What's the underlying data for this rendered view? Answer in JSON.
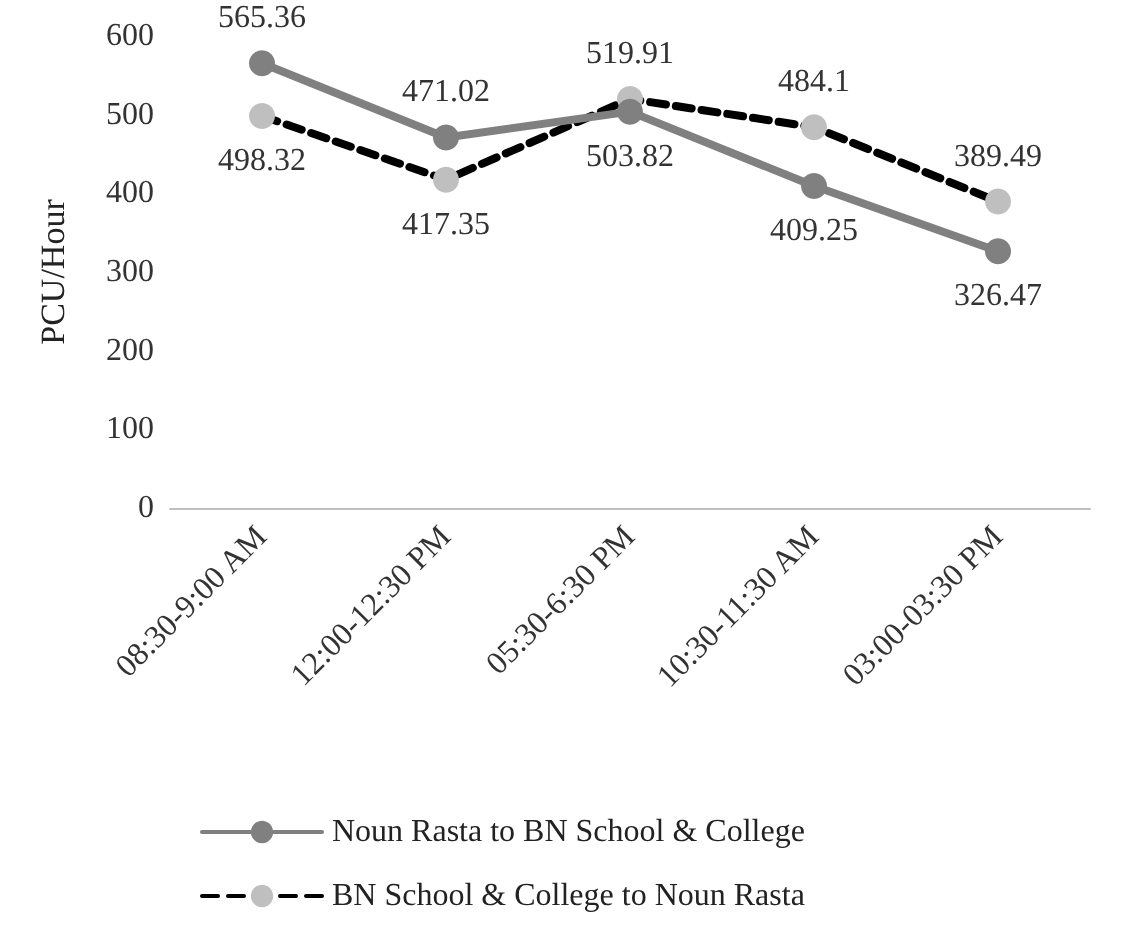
{
  "chart_data": {
    "type": "line",
    "ylabel": "PCU/Hour",
    "categories": [
      "08:30-9:00 AM",
      "12:00-12:30 PM",
      "05:30-6:30 PM",
      "10:30-11:30 AM",
      "03:00-03:30 PM"
    ],
    "series": [
      {
        "name": "Noun Rasta to BN School & College",
        "color": "#808080",
        "values": [
          565.36,
          471.02,
          503.82,
          409.25,
          326.47
        ],
        "line_style": "solid"
      },
      {
        "name": "BN School & College to Noun Rasta",
        "color": "#000000",
        "values": [
          498.32,
          417.35,
          519.91,
          484.1,
          389.49
        ],
        "line_style": "dashed"
      }
    ],
    "ylim": [
      0,
      600
    ],
    "yticks": [
      0,
      100,
      200,
      300,
      400,
      500,
      600
    ],
    "grid": false,
    "legend": "bottom",
    "marker": "circle",
    "data_labels": true
  }
}
